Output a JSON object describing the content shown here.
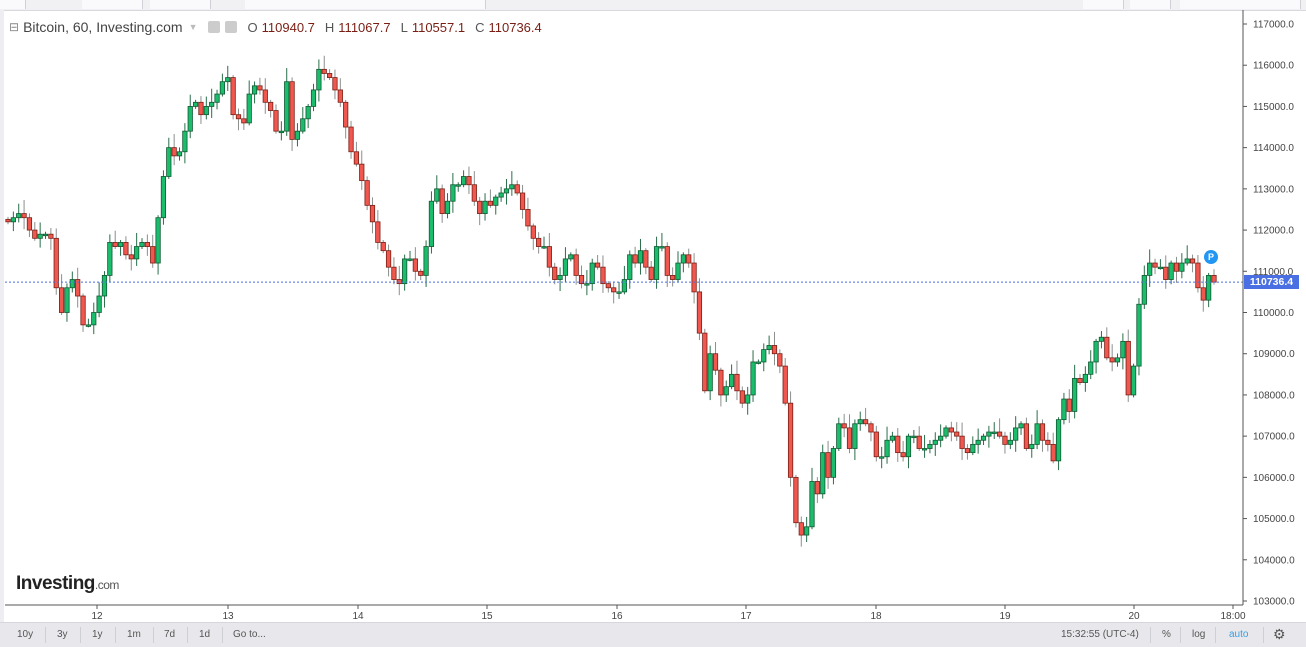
{
  "header": {
    "title": "Bitcoin, 60, Investing.com",
    "open_label": "O",
    "open": "110940.7",
    "high_label": "H",
    "high": "111067.7",
    "low_label": "L",
    "low": "110557.1",
    "close_label": "C",
    "close": "110736.4"
  },
  "price_tag": "110736.4",
  "badge": "P",
  "logo": {
    "main": "Investing",
    "suffix": ".com"
  },
  "bottom_bar": {
    "ranges": [
      "10y",
      "3y",
      "1y",
      "1m",
      "7d",
      "1d"
    ],
    "goto": "Go to...",
    "time": "15:32:55 (UTC-4)",
    "percent": "%",
    "log": "log",
    "auto": "auto",
    "settings_icon": "gear-icon"
  },
  "colors": {
    "up": "#1bbc6b",
    "down": "#f0584f",
    "last_price": "#4a6fe3"
  },
  "chart_data": {
    "type": "candlestick",
    "interval": "60",
    "ylim": [
      103000,
      117000
    ],
    "y_ticks": [
      "117000.0",
      "116000.0",
      "115000.0",
      "114000.0",
      "113000.0",
      "112000.0",
      "111000.0",
      "110000.0",
      "109000.0",
      "108000.0",
      "107000.0",
      "106000.0",
      "105000.0",
      "104000.0",
      "103000.0"
    ],
    "x_ticks": [
      "12",
      "13",
      "14",
      "15",
      "16",
      "17",
      "18",
      "19",
      "20",
      "18:00"
    ],
    "last_price": 110736.4,
    "close": [
      112200,
      112300,
      112400,
      112300,
      112000,
      111800,
      111900,
      111900,
      111800,
      110600,
      110000,
      110600,
      110800,
      110400,
      109700,
      109700,
      110000,
      110400,
      110900,
      111700,
      111600,
      111700,
      111400,
      111300,
      111600,
      111700,
      111600,
      111200,
      112300,
      113300,
      114000,
      113800,
      113900,
      114400,
      115000,
      115100,
      114800,
      115000,
      115100,
      115300,
      115600,
      115700,
      114800,
      114700,
      114600,
      115300,
      115500,
      115400,
      115100,
      114900,
      114400,
      114400,
      115600,
      114200,
      114400,
      114700,
      115000,
      115400,
      115900,
      115800,
      115700,
      115400,
      115100,
      114500,
      113900,
      113600,
      113200,
      112600,
      112200,
      111700,
      111500,
      111100,
      110800,
      110700,
      111300,
      111300,
      111000,
      110900,
      111600,
      112700,
      113000,
      112400,
      112700,
      113100,
      113100,
      113300,
      113100,
      112700,
      112400,
      112700,
      112600,
      112800,
      112900,
      113000,
      113100,
      112900,
      112500,
      112100,
      111800,
      111600,
      111600,
      111100,
      110800,
      110900,
      111300,
      111400,
      110900,
      110700,
      110700,
      111200,
      111100,
      110700,
      110600,
      110500,
      110500,
      110800,
      111400,
      111200,
      111500,
      111100,
      110800,
      111600,
      111600,
      110900,
      110800,
      111200,
      111400,
      111200,
      110500,
      109500,
      108100,
      109000,
      108600,
      108000,
      108200,
      108500,
      108100,
      107800,
      108000,
      108800,
      108800,
      109100,
      109200,
      109000,
      108700,
      107800,
      106000,
      104900,
      104600,
      104800,
      105900,
      105600,
      106600,
      106000,
      106700,
      107300,
      107200,
      106700,
      107300,
      107400,
      107300,
      107100,
      106500,
      106500,
      106900,
      107000,
      106600,
      106500,
      107000,
      107000,
      106700,
      106700,
      106800,
      106900,
      107000,
      107200,
      107100,
      107000,
      106700,
      106600,
      106800,
      106900,
      107000,
      107100,
      107100,
      107000,
      106800,
      106900,
      107200,
      107300,
      106700,
      106800,
      107300,
      106900,
      106800,
      106400,
      107400,
      107900,
      107600,
      108400,
      108300,
      108500,
      108800,
      109300,
      109400,
      108900,
      108800,
      108900,
      109300,
      108000,
      108700,
      110200,
      110900,
      111200,
      111100,
      111100,
      110800,
      111200,
      111000,
      111200,
      111300,
      111200,
      110600,
      110300,
      110900,
      110736.4
    ]
  }
}
